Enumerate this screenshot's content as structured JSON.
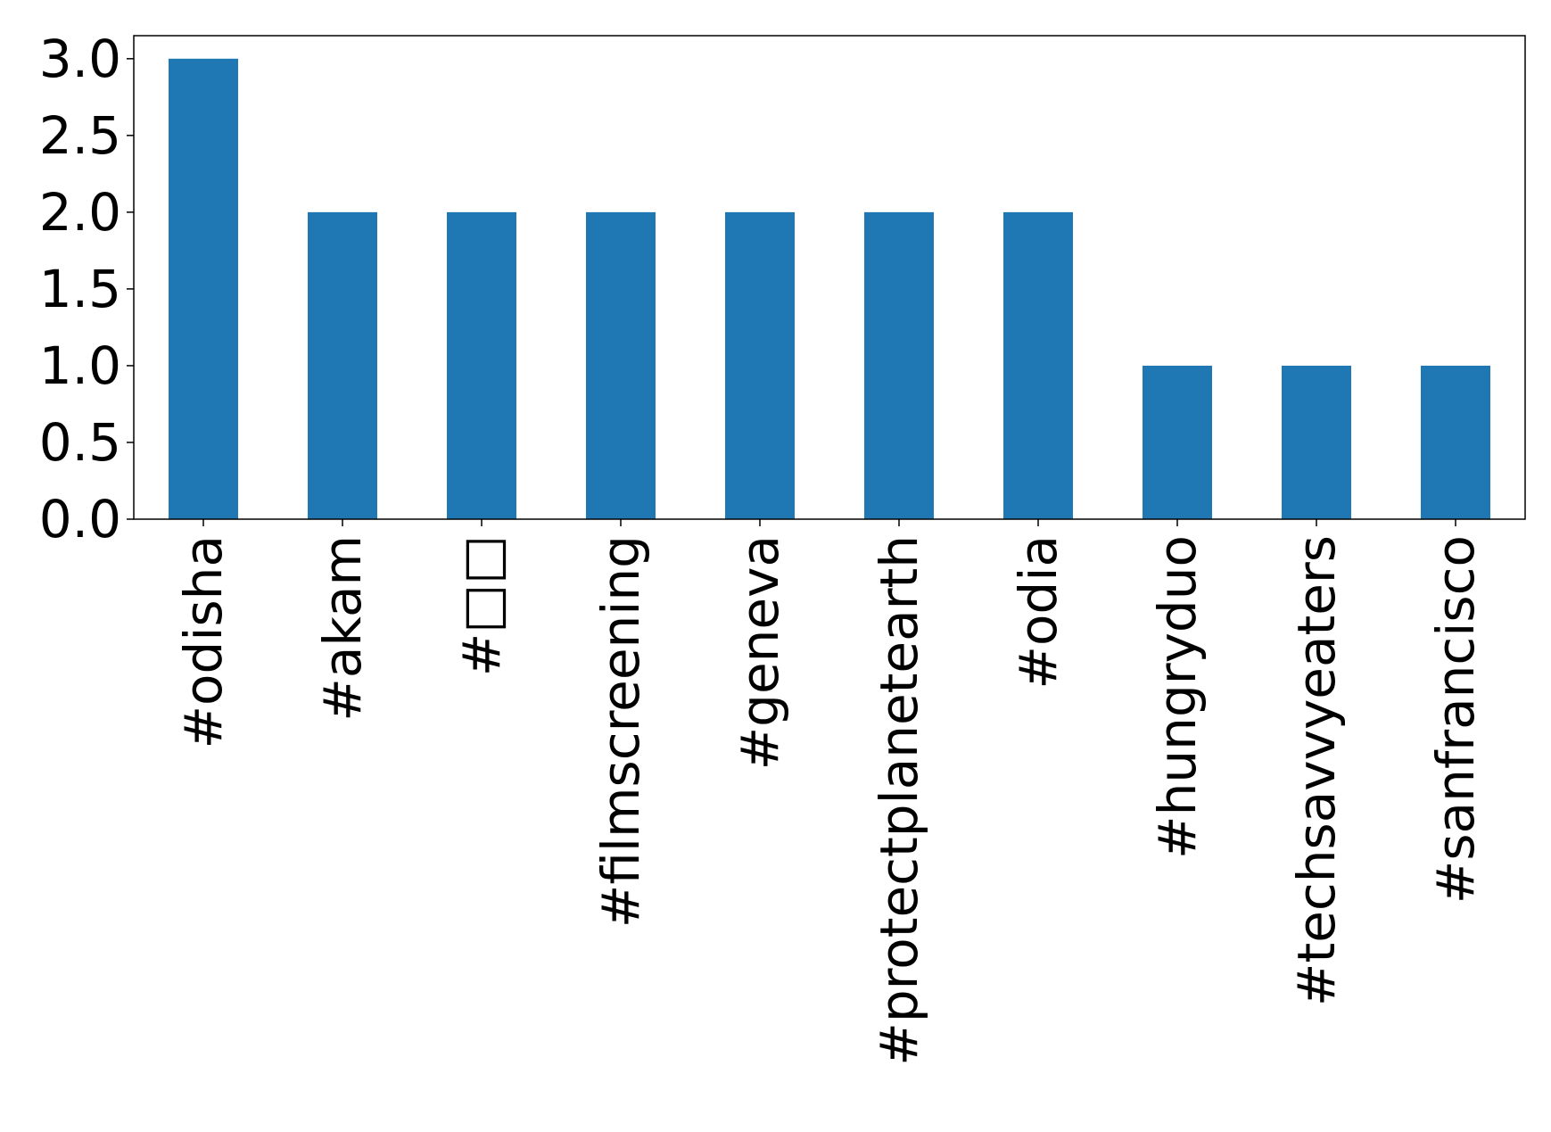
{
  "chart_data": {
    "type": "bar",
    "categories": [
      "#odisha",
      "#akam",
      "#□□",
      "#filmscreening",
      "#geneva",
      "#protectplanetearth",
      "#odia",
      "#hungryduo",
      "#techsavvyeaters",
      "#sanfrancisco"
    ],
    "values": [
      3,
      2,
      2,
      2,
      2,
      2,
      2,
      1,
      1,
      1
    ],
    "title": "",
    "xlabel": "",
    "ylabel": "",
    "ylim": [
      0,
      3.15
    ],
    "yticks": [
      "0.0",
      "0.5",
      "1.0",
      "1.5",
      "2.0",
      "2.5",
      "3.0"
    ],
    "grid": false,
    "bar_color": "#1f77b4"
  }
}
